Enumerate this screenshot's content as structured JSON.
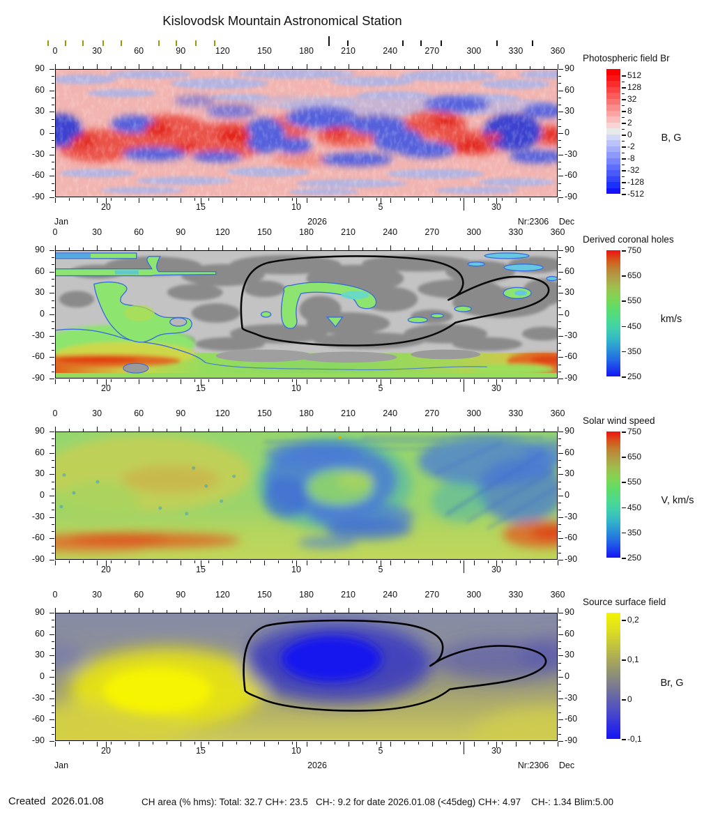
{
  "title": "Kislovodsk Mountain Astronomical Station",
  "footer": {
    "created": "Created  2026.01.08",
    "ch_area": "CH area (% hms): Total: 32.7 CH+: 23.5   CH-: 9.2 for date 2026.01.08 (<45deg) CH+: 4.97    CH-: 1.34 Blim:5.00"
  },
  "axes": {
    "lon_labels": [
      "0",
      "30",
      "60",
      "90",
      "120",
      "150",
      "180",
      "210",
      "240",
      "270",
      "300",
      "330",
      "360"
    ],
    "lat_labels": [
      "90",
      "60",
      "30",
      "0",
      "-30",
      "-60",
      "-90"
    ],
    "date_labels": [
      {
        "text": "20",
        "x": 73
      },
      {
        "text": "15",
        "x": 209
      },
      {
        "text": "10",
        "x": 346
      },
      {
        "text": "5",
        "x": 467
      },
      {
        "text": "30",
        "x": 633
      }
    ],
    "year_tick_x": 586,
    "start_month": "Jan",
    "end_month": "Dec",
    "year": "2026",
    "rotation_number": "Nr:2306"
  },
  "top_markers": {
    "olive": {
      "color": "#9a9a00",
      "x": [
        68,
        93,
        118,
        147,
        173,
        227,
        252,
        280,
        307
      ]
    },
    "black": {
      "color": "#111111",
      "x": [
        498,
        577,
        603,
        632,
        712,
        763
      ],
      "tall_x": [
        471
      ]
    }
  },
  "panels": [
    {
      "title": "Photospheric field Br",
      "unit": "B, G",
      "colorbar_type": "stepped",
      "colorbar_labels": [
        "512",
        "128",
        "32",
        "8",
        "2",
        "0",
        "-2",
        "-8",
        "-32",
        "-128",
        "-512"
      ],
      "colorbar_colors": [
        "#fa0000",
        "#fa1414",
        "#fa2c2c",
        "#fa4444",
        "#fa5c5c",
        "#fa7474",
        "#fa8c8c",
        "#faa4a4",
        "#fabcbc",
        "#fad4d4",
        "#e9e9e9",
        "#d3d8fb",
        "#bcc3fb",
        "#a5aefb",
        "#8e99fb",
        "#7784fb",
        "#606ffb",
        "#495afb",
        "#3245fb",
        "#1b30fb",
        "#1212fb"
      ]
    },
    {
      "title": "Derived coronal holes",
      "unit": "km/s",
      "colorbar_type": "gradient",
      "colorbar_gradient": "rainbow",
      "colorbar_labels": [
        "750",
        "650",
        "550",
        "450",
        "350",
        "250"
      ]
    },
    {
      "title": "Solar wind speed",
      "unit": "V, km/s",
      "colorbar_type": "gradient",
      "colorbar_gradient": "rainbow",
      "colorbar_labels": [
        "750",
        "650",
        "550",
        "450",
        "350",
        "250"
      ]
    },
    {
      "title": "Source surface field",
      "unit": "Br, G",
      "colorbar_type": "gradient",
      "colorbar_gradient": "yellowblue",
      "colorbar_labels": [
        "0,2",
        "0,1",
        "0",
        "-0,1"
      ]
    }
  ],
  "chart_data": [
    {
      "type": "heatmap",
      "title": "Photospheric field Br",
      "x_range": [
        0,
        360
      ],
      "y_range": [
        -90,
        90
      ],
      "x_ticks": [
        0,
        30,
        60,
        90,
        120,
        150,
        180,
        210,
        240,
        270,
        300,
        330,
        360
      ],
      "y_ticks": [
        90,
        60,
        30,
        0,
        -30,
        -60,
        -90
      ],
      "colorbar": {
        "unit": "B, G",
        "ticks": [
          512,
          128,
          32,
          8,
          2,
          0,
          -2,
          -8,
          -32,
          -128,
          -512
        ],
        "positive_color": "red",
        "negative_color": "blue",
        "zero_color": "light gray"
      },
      "features": [
        "mottled mixed-polarity field strongest in activity belts within ±40 deg latitude",
        "strong negative (blue) patches near 0-20, 40-75, 150-250 and 290-330 deg at low latitudes",
        "strong positive (red) regions near 20-170, 260-290 and 310-320 deg at low latitudes",
        "weak mottled pink/light-blue field at polar latitudes"
      ]
    },
    {
      "type": "heatmap",
      "title": "Derived coronal holes",
      "x_range": [
        0,
        360
      ],
      "y_range": [
        -90,
        90
      ],
      "x_ticks": [
        0,
        30,
        60,
        90,
        120,
        150,
        180,
        210,
        240,
        270,
        300,
        330,
        360
      ],
      "y_ticks": [
        90,
        60,
        30,
        0,
        -30,
        -60,
        -90
      ],
      "colorbar": {
        "unit": "km/s",
        "ticks": [
          750,
          650,
          550,
          450,
          350,
          250
        ]
      },
      "features": [
        "closed-field corona shown as light/dark gray patches",
        "south polar coronal-hole band, fastest wind ~700-750 km/s (orange) near 0-60 and 330-360 deg",
        "large mid-latitude green hole complex near 10-90 deg, 60 to -30 deg latitude",
        "hook/horseshoe-shaped equatorial hole near 160-230 deg inside black contour",
        "narrow green lanes near +85 and +60 deg latitude at 0-70 deg longitude",
        "small holes near 290-300 deg and 330 deg at +25 deg latitude",
        "black contour outlines dominant hole system from ~145 to ~355 deg"
      ]
    },
    {
      "type": "heatmap",
      "title": "Solar wind speed",
      "x_range": [
        0,
        360
      ],
      "y_range": [
        -90,
        90
      ],
      "x_ticks": [
        0,
        30,
        60,
        90,
        120,
        150,
        180,
        210,
        240,
        270,
        300,
        330,
        360
      ],
      "y_ticks": [
        90,
        60,
        30,
        0,
        -30,
        -60,
        -90
      ],
      "colorbar": {
        "unit": "V, km/s",
        "ticks": [
          750,
          650,
          550,
          450,
          350,
          250
        ]
      },
      "features": [
        "background medium wind ~450-550 km/s (green) with olive-yellow region near 20-100 deg north",
        "slow wind ~300-400 km/s (blue, streaky) over streamer belt near 130-280 deg and 250-360 deg north",
        "fast wind bands ~650-750 km/s (orange-red) near -60 deg latitude at 0-80 and 330-360 deg",
        "slow-wind tongue at -40 to -70 deg near 170-220 deg"
      ]
    },
    {
      "type": "heatmap",
      "title": "Source surface field",
      "x_range": [
        0,
        360
      ],
      "y_range": [
        -90,
        90
      ],
      "x_ticks": [
        0,
        30,
        60,
        90,
        120,
        150,
        180,
        210,
        240,
        270,
        300,
        330,
        360
      ],
      "y_ticks": [
        90,
        60,
        30,
        0,
        -30,
        -60,
        -90
      ],
      "colorbar": {
        "unit": "Br, G",
        "ticks": [
          "0,2",
          "0,1",
          "0",
          "-0,1"
        ]
      },
      "features": [
        "smooth large-scale field: positive lobe up to ~0.2 G (yellow) centered near 75 deg, -10 deg latitude",
        "negative lobe ~-0.1 G (blue) centered near 160-240 deg, +30 deg latitude",
        "weak negative extension toward 300-355 deg at +25 deg latitude",
        "black neutral-line contour matching coronal-hole contour of panel 2"
      ]
    }
  ]
}
